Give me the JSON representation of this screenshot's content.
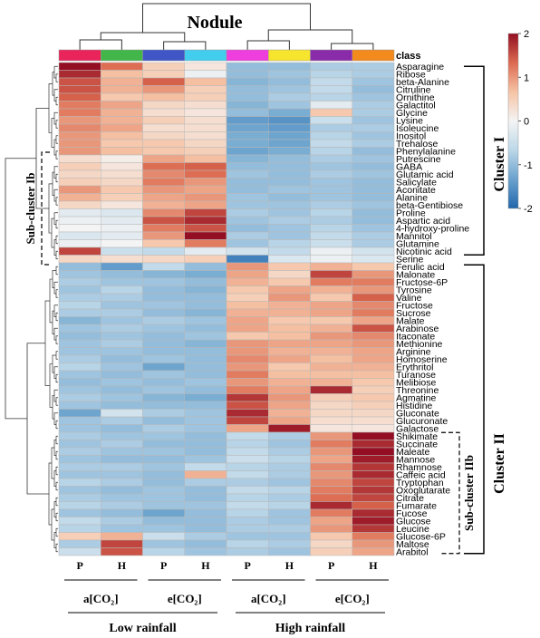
{
  "chart_data": {
    "type": "heatmap",
    "title": "Nodule",
    "class_label": "class",
    "colorscale": {
      "min": -2,
      "max": 2,
      "ticks": [
        "2",
        "1",
        "0",
        "-1",
        "-2"
      ],
      "colors": [
        "#2166ac",
        "#6aa2cd",
        "#bcd7e8",
        "#f4f4f4",
        "#f6c3a5",
        "#dc6a50",
        "#930e22"
      ]
    },
    "columns": [
      {
        "label": "P",
        "color": "#e9245a"
      },
      {
        "label": "H",
        "color": "#43b649"
      },
      {
        "label": "P",
        "color": "#4056c6"
      },
      {
        "label": "H",
        "color": "#42cdee"
      },
      {
        "label": "P",
        "color": "#ee3ede"
      },
      {
        "label": "H",
        "color": "#f7e42d"
      },
      {
        "label": "P",
        "color": "#8a2ca9"
      },
      {
        "label": "H",
        "color": "#f38a1e"
      }
    ],
    "co2_labels": [
      "a[CO₂]",
      "e[CO₂]",
      "a[CO₂]",
      "e[CO₂]"
    ],
    "rainfall_labels": [
      "Low rainfall",
      "High rainfall"
    ],
    "cluster_labels": {
      "cluster1": "Cluster I",
      "cluster2": "Cluster II",
      "sub1b": "Sub-cluster Ib",
      "sub2b": "Sub-cluster IIb"
    },
    "rows": [
      "Asparagine",
      "Ribose",
      "beta-Alanine",
      "Citruline",
      "Ornithine",
      "Galactitol",
      "Glycine",
      "Lysine",
      "Isoleucine",
      "Inositol",
      "Trehalose",
      "Phenylalanine",
      "Putrescine",
      "GABA",
      "Glutamic acid",
      "Salicylate",
      "Aconitate",
      "Alanine",
      "beta-Gentibiose",
      "Proline",
      "Aspartic acid",
      "4-hydroxy-proline",
      "Mannitol",
      "Glutamine",
      "Nicotinic acid",
      "Serine",
      "Ferulic acid",
      "Malonate",
      "Fructose-6P",
      "Tyrosine",
      "Valine",
      "Fructose",
      "Sucrose",
      "Malate",
      "Arabinose",
      "Itaconate",
      "Methionine",
      "Arginine",
      "Homoserine",
      "Erythritol",
      "Turanose",
      "Melibiose",
      "Threonine",
      "Agmatine",
      "Histidine",
      "Gluconate",
      "Glucuronate",
      "Galactose",
      "Shikimate",
      "Succinate",
      "Maleate",
      "Mannose",
      "Rhamnose",
      "Caffeic acid",
      "Tryptophan",
      "Oxoglutarate",
      "Citrate",
      "Fumarate",
      "Fucose",
      "Glucose",
      "Leucine",
      "Glucose-6P",
      "Maltose",
      "Arabitol"
    ],
    "values": [
      [
        2.2,
        1.3,
        0.5,
        0.2,
        -1.0,
        -1.0,
        -0.8,
        -0.8
      ],
      [
        1.8,
        0.7,
        0.5,
        -0.1,
        -1.0,
        -0.9,
        -0.7,
        -0.8
      ],
      [
        1.5,
        0.8,
        1.4,
        0.7,
        -1.1,
        -1.0,
        -0.6,
        -0.9
      ],
      [
        1.5,
        0.8,
        1.0,
        0.5,
        -1.0,
        -0.9,
        -0.6,
        -1.0
      ],
      [
        1.4,
        0.6,
        0.7,
        0.5,
        -1.0,
        -0.8,
        -0.7,
        -0.9
      ],
      [
        1.2,
        0.9,
        0.4,
        0.3,
        -1.1,
        -0.9,
        -0.2,
        -0.8
      ],
      [
        1.2,
        0.8,
        0.3,
        0.2,
        -1.0,
        -1.2,
        0.6,
        -0.8
      ],
      [
        1.0,
        0.8,
        0.5,
        0.3,
        -1.4,
        -1.5,
        -0.5,
        -0.9
      ],
      [
        1.1,
        0.9,
        0.3,
        0.3,
        -1.3,
        -1.4,
        -0.8,
        -0.8
      ],
      [
        1.0,
        0.7,
        0.4,
        0.3,
        -1.2,
        -1.3,
        -0.7,
        -0.9
      ],
      [
        1.0,
        0.6,
        0.6,
        0.4,
        -1.2,
        -1.3,
        -0.6,
        -0.8
      ],
      [
        1.0,
        0.7,
        0.6,
        0.5,
        -1.3,
        -1.2,
        -0.7,
        -1.0
      ],
      [
        0.3,
        0.1,
        0.9,
        0.7,
        -1.1,
        -1.0,
        -0.8,
        -0.9
      ],
      [
        0.5,
        0.2,
        1.3,
        1.4,
        -1.0,
        -1.0,
        -0.9,
        -1.0
      ],
      [
        0.4,
        0.3,
        1.1,
        1.3,
        -0.9,
        -1.0,
        -0.8,
        -0.9
      ],
      [
        0.5,
        0.4,
        1.2,
        1.0,
        -1.0,
        -1.0,
        -0.9,
        -1.0
      ],
      [
        1.0,
        0.6,
        1.0,
        0.9,
        -1.0,
        -0.9,
        -0.9,
        -1.0
      ],
      [
        0.8,
        0.5,
        0.9,
        1.0,
        -0.9,
        -1.0,
        -0.9,
        -1.0
      ],
      [
        0.4,
        0.2,
        0.8,
        0.9,
        -0.9,
        -0.9,
        -0.8,
        -0.9
      ],
      [
        -0.2,
        -0.3,
        1.1,
        1.6,
        -0.8,
        -0.9,
        -0.7,
        -1.0
      ],
      [
        -0.1,
        -0.2,
        1.5,
        1.8,
        -0.9,
        -0.8,
        -0.8,
        -1.0
      ],
      [
        0.0,
        -0.1,
        1.2,
        1.5,
        -1.0,
        -0.9,
        -0.7,
        -0.9
      ],
      [
        -0.3,
        -0.2,
        1.0,
        2.0,
        -0.8,
        -0.9,
        -0.6,
        -0.8
      ],
      [
        -0.1,
        0.0,
        0.6,
        1.2,
        -0.9,
        -0.7,
        -0.5,
        -0.8
      ],
      [
        1.6,
        -0.5,
        -0.6,
        -0.2,
        -0.4,
        -0.6,
        -0.1,
        -0.4
      ],
      [
        0.4,
        0.3,
        0.4,
        0.5,
        -1.7,
        -0.3,
        -0.1,
        -0.3
      ],
      [
        -1.0,
        -1.4,
        -0.6,
        -1.0,
        1.0,
        0.6,
        0.8,
        0.6
      ],
      [
        -0.9,
        -1.0,
        -1.1,
        -1.2,
        0.9,
        0.4,
        1.6,
        1.0
      ],
      [
        -0.8,
        -0.9,
        -0.9,
        -1.0,
        0.8,
        0.6,
        1.2,
        1.2
      ],
      [
        -0.9,
        -0.7,
        -1.0,
        -1.1,
        0.6,
        0.9,
        0.8,
        1.0
      ],
      [
        -0.8,
        -0.8,
        -1.0,
        -1.0,
        0.5,
        1.0,
        0.6,
        1.4
      ],
      [
        -0.7,
        -0.9,
        -0.9,
        -1.0,
        0.7,
        0.8,
        0.9,
        1.1
      ],
      [
        -0.8,
        -0.8,
        -1.0,
        -1.1,
        0.8,
        0.8,
        0.9,
        1.2
      ],
      [
        -1.1,
        -0.9,
        -0.8,
        -0.9,
        0.9,
        0.6,
        0.6,
        0.9
      ],
      [
        -0.9,
        -0.8,
        -0.9,
        -1.0,
        0.9,
        0.7,
        0.8,
        1.5
      ],
      [
        -1.0,
        -0.9,
        -1.0,
        -0.9,
        0.6,
        0.7,
        1.0,
        1.1
      ],
      [
        -0.9,
        -0.8,
        -1.0,
        -1.1,
        1.0,
        0.9,
        0.9,
        1.0
      ],
      [
        -0.9,
        -0.9,
        -1.0,
        -1.0,
        1.0,
        0.8,
        0.8,
        0.9
      ],
      [
        -0.8,
        -1.0,
        -0.9,
        -1.0,
        1.1,
        0.9,
        0.7,
        0.9
      ],
      [
        -0.7,
        -0.9,
        -1.3,
        -1.0,
        1.0,
        0.6,
        0.8,
        0.8
      ],
      [
        -0.9,
        -1.0,
        -0.9,
        -1.0,
        1.2,
        0.7,
        0.7,
        0.7
      ],
      [
        -1.0,
        -0.9,
        -1.0,
        -0.9,
        1.0,
        0.8,
        0.8,
        0.6
      ],
      [
        -0.9,
        -1.0,
        -0.9,
        -1.0,
        1.2,
        0.9,
        1.8,
        0.5
      ],
      [
        -0.8,
        -0.9,
        -1.1,
        -1.2,
        1.7,
        1.0,
        0.5,
        0.6
      ],
      [
        -0.9,
        -1.0,
        -1.0,
        -1.0,
        1.5,
        0.9,
        0.4,
        0.5
      ],
      [
        -1.3,
        -0.4,
        -0.8,
        -0.9,
        1.8,
        0.8,
        0.4,
        0.4
      ],
      [
        -0.9,
        -0.8,
        -1.0,
        -0.9,
        1.6,
        0.9,
        0.3,
        0.3
      ],
      [
        -0.9,
        -1.0,
        -0.8,
        -0.9,
        0.9,
        1.9,
        0.2,
        0.2
      ],
      [
        -0.8,
        -0.9,
        -0.9,
        -1.0,
        -0.6,
        -0.8,
        1.0,
        2.1
      ],
      [
        -0.9,
        -0.8,
        -1.0,
        -1.0,
        -0.7,
        -0.9,
        1.2,
        1.8
      ],
      [
        -0.8,
        -0.9,
        -0.9,
        -1.0,
        -0.6,
        -0.8,
        1.0,
        2.0
      ],
      [
        -0.9,
        -1.0,
        -1.0,
        -0.9,
        -0.5,
        -0.7,
        0.9,
        1.9
      ],
      [
        -0.8,
        -0.8,
        -0.9,
        -0.6,
        -0.7,
        -0.8,
        1.1,
        1.7
      ],
      [
        -0.9,
        -0.9,
        -1.0,
        0.8,
        -0.6,
        -0.8,
        1.0,
        1.8
      ],
      [
        -0.7,
        -0.8,
        -1.0,
        -0.8,
        -0.8,
        -0.9,
        1.1,
        1.6
      ],
      [
        -0.9,
        -1.0,
        -0.9,
        -1.0,
        -0.6,
        -0.7,
        1.2,
        1.7
      ],
      [
        -0.8,
        -0.9,
        -0.9,
        -1.0,
        -0.7,
        -0.8,
        1.3,
        1.6
      ],
      [
        -0.7,
        -0.8,
        -0.9,
        -0.9,
        -0.6,
        -0.7,
        1.8,
        1.4
      ],
      [
        -0.9,
        -1.0,
        -1.3,
        -1.0,
        -0.7,
        -0.9,
        1.2,
        1.8
      ],
      [
        -0.6,
        -0.8,
        -1.0,
        -1.0,
        -0.8,
        -0.9,
        0.9,
        1.9
      ],
      [
        -0.7,
        -0.9,
        -0.9,
        -1.0,
        -0.8,
        -0.8,
        1.0,
        1.7
      ],
      [
        0.5,
        0.8,
        -0.5,
        -0.8,
        -0.9,
        -0.9,
        0.6,
        1.2
      ],
      [
        -0.8,
        1.6,
        -0.9,
        -1.0,
        -0.7,
        -0.8,
        0.4,
        1.0
      ],
      [
        -0.5,
        1.5,
        -0.7,
        -0.9,
        -0.8,
        -0.9,
        0.5,
        0.9
      ]
    ]
  }
}
